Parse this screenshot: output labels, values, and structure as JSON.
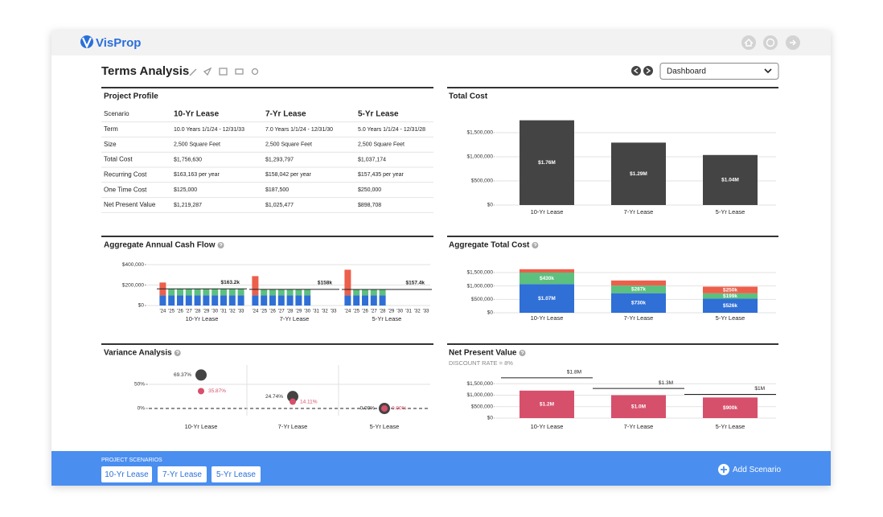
{
  "header": {
    "brand": "VisProp"
  },
  "page": {
    "title": "Terms Analysis",
    "view": "Dashboard"
  },
  "profile": {
    "title": "Project Profile",
    "columns": [
      "Scenario",
      "10-Yr Lease",
      "7-Yr Lease",
      "5-Yr Lease"
    ],
    "rows": [
      [
        "Term",
        "10.0 Years 1/1/24 -  12/31/33",
        "7.0 Years 1/1/24 -  12/31/30",
        "5.0 Years 1/1/24 -  12/31/28"
      ],
      [
        "Size",
        "2,500 Square Feet",
        "2,500 Square Feet",
        "2,500 Square Feet"
      ],
      [
        "Total Cost",
        "$1,756,630",
        "$1,293,797",
        "$1,037,174"
      ],
      [
        "Recurring Cost",
        "$163,163 per year",
        "$158,042 per year",
        "$157,435 per year"
      ],
      [
        "One Time Cost",
        "$125,000",
        "$187,500",
        "$250,000"
      ],
      [
        "Net Present Value",
        "$1,219,287",
        "$1,025,477",
        "$898,708"
      ]
    ]
  },
  "chart_data": [
    {
      "type": "bar",
      "title": "Total Cost",
      "categories": [
        "10-Yr Lease",
        "7-Yr Lease",
        "5-Yr Lease"
      ],
      "values": [
        1756630,
        1293797,
        1037174
      ],
      "value_labels": [
        "$1.76M",
        "$1.29M",
        "$1.04M"
      ],
      "color": "#444444",
      "ylim": [
        0,
        1800000
      ],
      "yticks": [
        {
          "value": 0,
          "label": "$0"
        },
        {
          "value": 500000,
          "label": "$500,000"
        },
        {
          "value": 1000000,
          "label": "$1,000,000"
        },
        {
          "value": 1500000,
          "label": "$1,500,000"
        }
      ],
      "grid": true
    },
    {
      "type": "grouped-stacked-bar",
      "title": "Aggregate Annual Cash Flow",
      "categories": [
        "'24",
        "'25",
        "'26",
        "'27",
        "'28",
        "'29",
        "'30",
        "'31",
        "'32",
        "'33"
      ],
      "groups": [
        {
          "name": "10-Yr Lease",
          "reference": {
            "value": 163163,
            "label": "$163.2k"
          },
          "series": [
            {
              "color": "#2f6fd6",
              "values": [
                100000,
                100000,
                100000,
                100000,
                100000,
                100000,
                100000,
                100000,
                100000,
                100000
              ]
            },
            {
              "color": "#5cc07f",
              "values": [
                null,
                63163,
                63163,
                63163,
                63163,
                63163,
                63163,
                63163,
                63163,
                63163
              ]
            },
            {
              "color": "#ec5f4b",
              "values": [
                125000,
                null,
                null,
                null,
                null,
                null,
                null,
                null,
                null,
                null
              ]
            }
          ]
        },
        {
          "name": "7-Yr Lease",
          "reference": {
            "value": 158042,
            "label": "$158k"
          },
          "series": [
            {
              "color": "#2f6fd6",
              "values": [
                100000,
                100000,
                100000,
                100000,
                100000,
                100000,
                100000,
                null,
                null,
                null
              ]
            },
            {
              "color": "#5cc07f",
              "values": [
                null,
                58042,
                58042,
                58042,
                58042,
                58042,
                58042,
                null,
                null,
                null
              ]
            },
            {
              "color": "#ec5f4b",
              "values": [
                187500,
                null,
                null,
                null,
                null,
                null,
                null,
                null,
                null,
                null
              ]
            }
          ]
        },
        {
          "name": "5-Yr Lease",
          "reference": {
            "value": 157435,
            "label": "$157.4k"
          },
          "series": [
            {
              "color": "#2f6fd6",
              "values": [
                100000,
                100000,
                100000,
                100000,
                100000,
                null,
                null,
                null,
                null,
                null
              ]
            },
            {
              "color": "#5cc07f",
              "values": [
                null,
                57435,
                57435,
                57435,
                57435,
                null,
                null,
                null,
                null,
                null
              ]
            },
            {
              "color": "#ec5f4b",
              "values": [
                250000,
                null,
                null,
                null,
                null,
                null,
                null,
                null,
                null,
                null
              ]
            }
          ]
        }
      ],
      "ylim": [
        0,
        440000
      ],
      "yticks": [
        {
          "value": 0,
          "label": "$0"
        },
        {
          "value": 200000,
          "label": "$200,000"
        },
        {
          "value": 400000,
          "label": "$400,000"
        }
      ],
      "grid": true
    },
    {
      "type": "stacked-bar",
      "title": "Aggregate Total Cost",
      "categories": [
        "10-Yr Lease",
        "7-Yr Lease",
        "5-Yr Lease"
      ],
      "series": [
        {
          "color": "#2f6fd6",
          "values": [
            1070000,
            730000,
            526000
          ],
          "value_labels": [
            "$1.07M",
            "$730k",
            "$526k"
          ]
        },
        {
          "color": "#5cc07f",
          "values": [
            430000,
            287000,
            199000
          ],
          "value_labels": [
            "$430k",
            "$287k",
            "$199k"
          ]
        },
        {
          "color": "#ec5f4b",
          "values": [
            125000,
            187500,
            250000
          ],
          "value_labels": [
            null,
            null,
            "$250k"
          ]
        }
      ],
      "ylim": [
        0,
        1800000
      ],
      "yticks": [
        {
          "value": 0,
          "label": "$0"
        },
        {
          "value": 500000,
          "label": "$500,000"
        },
        {
          "value": 1000000,
          "label": "$1,000,000"
        },
        {
          "value": 1500000,
          "label": "$1,500,000"
        }
      ],
      "grid": true
    },
    {
      "type": "scatter",
      "title": "Variance Analysis",
      "categories": [
        "10-Yr Lease",
        "7-Yr Lease",
        "5-Yr Lease"
      ],
      "series": [
        {
          "color": "#444444",
          "values": [
            69.37,
            24.74,
            0
          ],
          "value_labels": [
            "69.37%",
            "24.74%",
            "0.00%"
          ]
        },
        {
          "color": "#d6506b",
          "values": [
            35.87,
            14.11,
            0
          ],
          "value_labels": [
            "35.87%",
            "14.11%",
            "0.00%"
          ]
        }
      ],
      "ylim": [
        -15,
        90
      ],
      "yticks": [
        {
          "value": 0,
          "label": "0%"
        },
        {
          "value": 50,
          "label": "50%"
        }
      ],
      "grid": true
    },
    {
      "type": "bar",
      "title": "Net Present Value",
      "subtitle": "DISCOUNT RATE = 8%",
      "categories": [
        "10-Yr Lease",
        "7-Yr Lease",
        "5-Yr Lease"
      ],
      "values": [
        1200000,
        1000000,
        900000
      ],
      "value_labels": [
        "$1.2M",
        "$1.0M",
        "$900k"
      ],
      "references": [
        {
          "value": 1756630,
          "label": "$1.8M"
        },
        {
          "value": 1293797,
          "label": "$1.3M"
        },
        {
          "value": 1037174,
          "label": "$1M"
        }
      ],
      "color": "#d6506b",
      "ylim": [
        0,
        2000000
      ],
      "yticks": [
        {
          "value": 0,
          "label": "$0"
        },
        {
          "value": 500000,
          "label": "$500,000"
        },
        {
          "value": 1000000,
          "label": "$1,000,000"
        },
        {
          "value": 1500000,
          "label": "$1,500,000"
        }
      ],
      "grid": true
    }
  ],
  "footer": {
    "label": "PROJECT SCENARIOS",
    "scenarios": [
      "10-Yr Lease",
      "7-Yr Lease",
      "5-Yr Lease"
    ],
    "action": "Add Scenario"
  }
}
